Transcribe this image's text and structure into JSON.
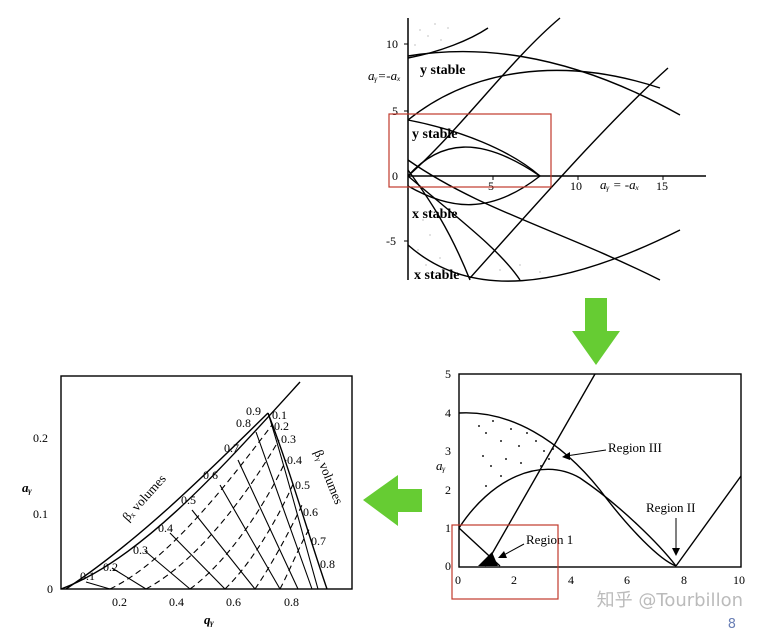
{
  "top_diagram": {
    "y_ticks": [
      "10",
      "5",
      "0",
      "-5"
    ],
    "x_ticks": [
      "5",
      "10",
      "15"
    ],
    "y_axis_label": "aᵧ=-aₓ",
    "x_axis_label": "aᵧ = -aₓ",
    "regions": [
      "y stable",
      "y stable",
      "x stable",
      "x stable"
    ]
  },
  "bottom_right": {
    "y_ticks": [
      "5",
      "4",
      "3",
      "2",
      "1",
      "0"
    ],
    "x_ticks": [
      "0",
      "2",
      "4",
      "6",
      "8",
      "10"
    ],
    "y_axis_label": "aᵧ",
    "region_labels": [
      "Region III",
      "Region II",
      "Region 1"
    ]
  },
  "bottom_left": {
    "y_ticks": [
      "0.2",
      "0.1",
      "0"
    ],
    "x_ticks": [
      "0.2",
      "0.4",
      "0.6",
      "0.8"
    ],
    "y_axis_label": "aᵧ",
    "x_axis_label": "qᵧ",
    "beta_x_label": "βₓ volumes",
    "beta_y_label": "βᵧ volumes",
    "beta_x_values": [
      "0.1",
      "0.2",
      "0.3",
      "0.4",
      "0.5",
      "0.6",
      "0.7",
      "0.8",
      "0.9"
    ],
    "beta_y_values": [
      "0.1",
      "0.2",
      "0.3",
      "0.4",
      "0.5",
      "0.6",
      "0.7",
      "0.8"
    ]
  },
  "watermark": "知乎 @Tourbillon",
  "page_number": "8",
  "colors": {
    "arrow": "#66cc33",
    "highlight_box": "#c0392b"
  }
}
